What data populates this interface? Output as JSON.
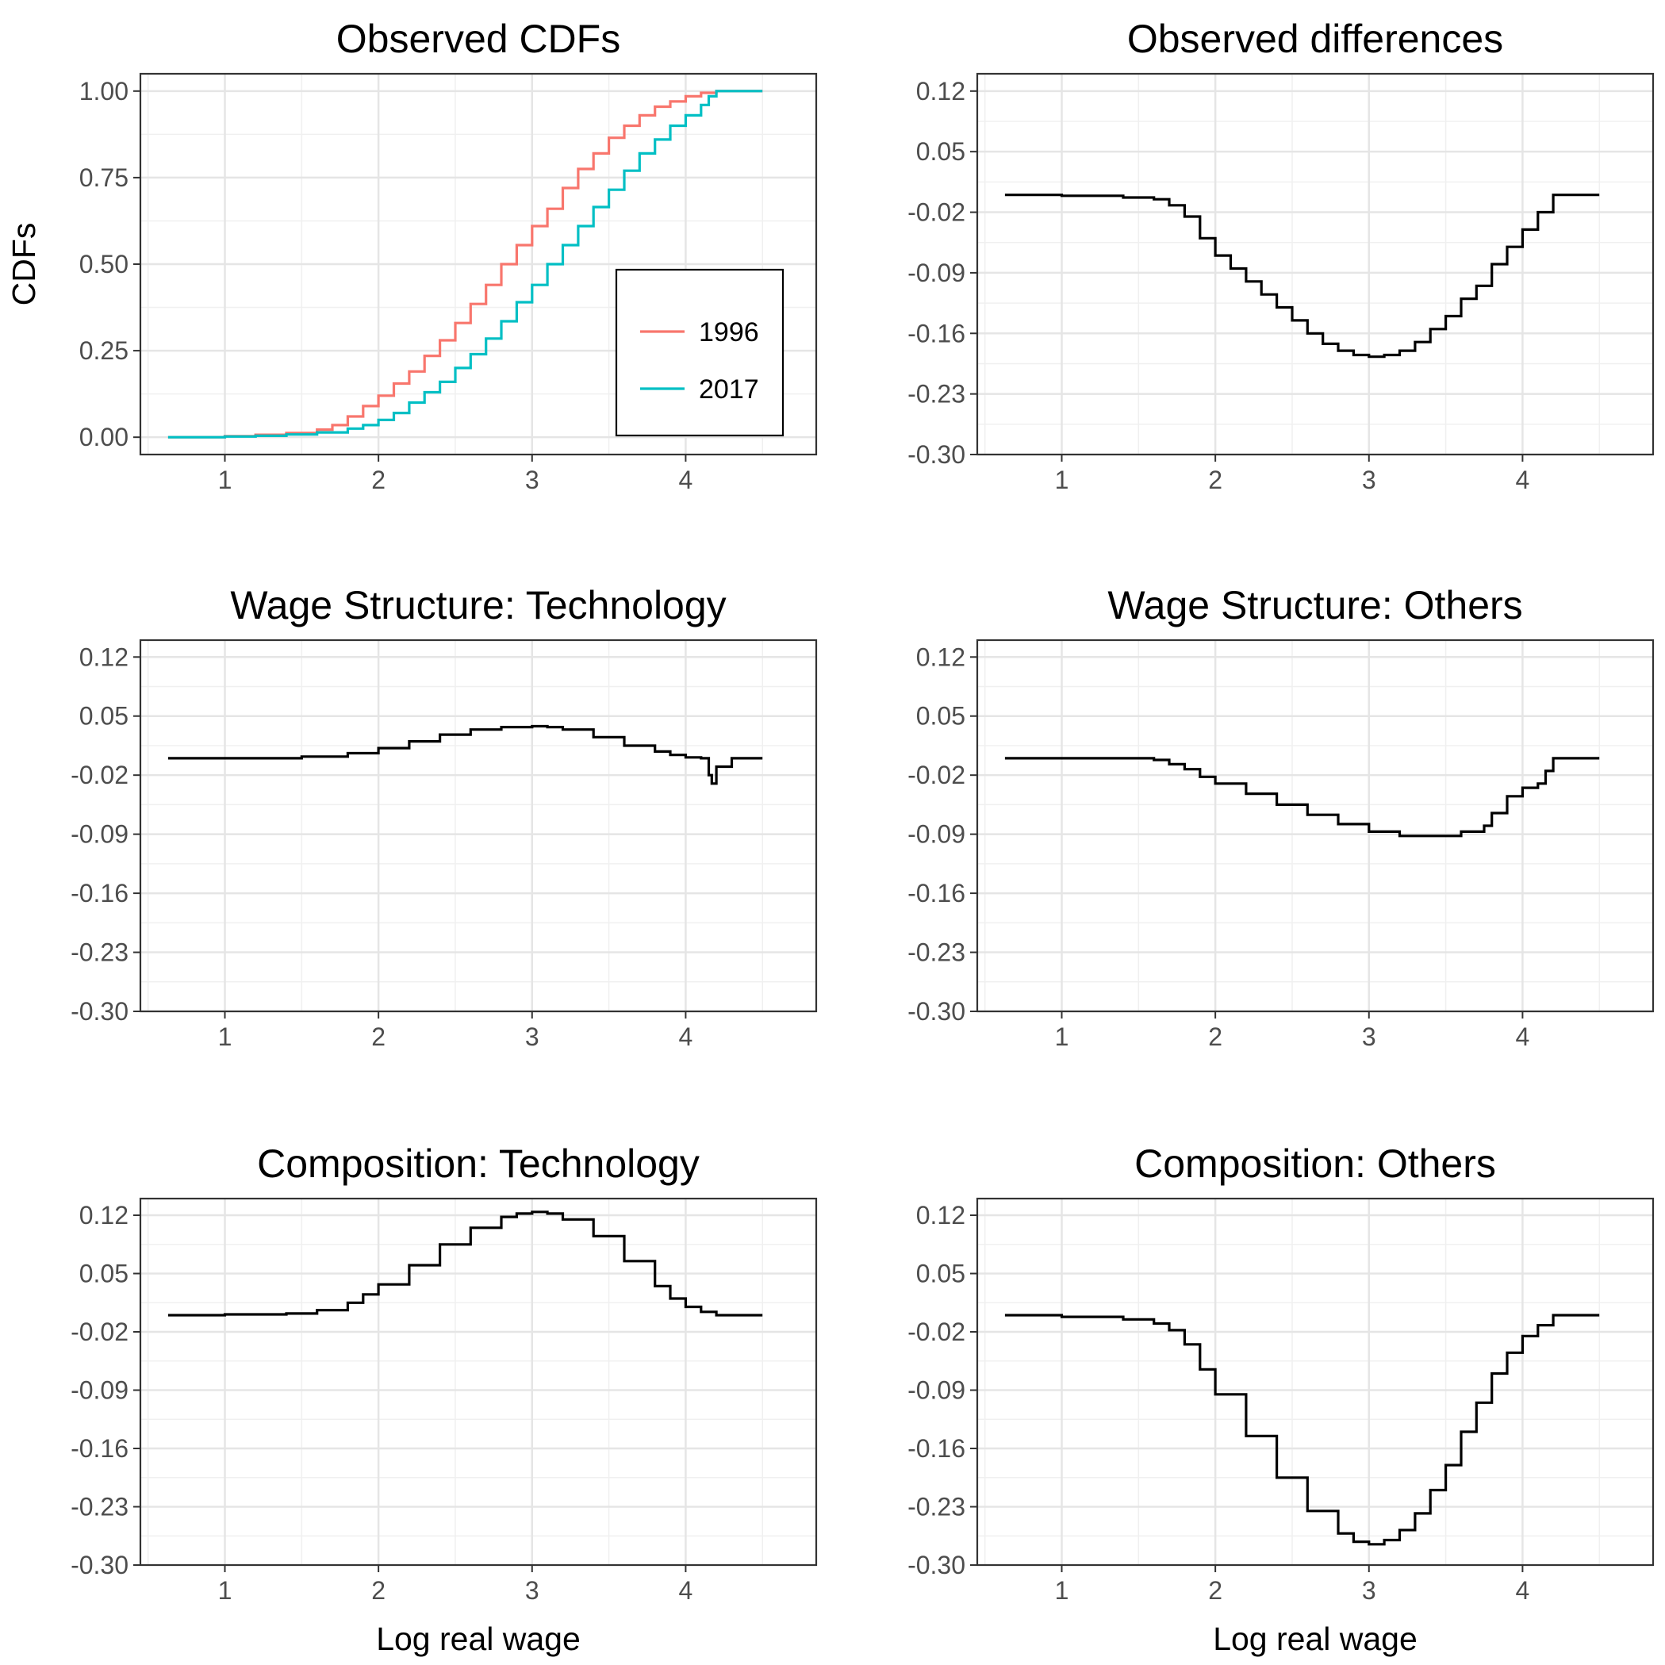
{
  "chart_data": [
    {
      "type": "line",
      "title": "Observed CDFs",
      "xlabel": "",
      "ylabel": "CDFs",
      "xlim": [
        0.45,
        4.85
      ],
      "ylim": [
        -0.05,
        1.05
      ],
      "xticks": [
        "1",
        "2",
        "3",
        "4"
      ],
      "yticks": [
        "0.00",
        "0.25",
        "0.50",
        "0.75",
        "1.00"
      ],
      "grid": true,
      "legend": {
        "position": "bottom-right",
        "entries": [
          "1996",
          "2017"
        ]
      },
      "series": [
        {
          "name": "1996",
          "color": "#F8766D",
          "x": [
            0.63,
            1.0,
            1.2,
            1.4,
            1.6,
            1.7,
            1.8,
            1.9,
            2.0,
            2.1,
            2.2,
            2.3,
            2.4,
            2.5,
            2.6,
            2.7,
            2.8,
            2.9,
            3.0,
            3.1,
            3.2,
            3.3,
            3.4,
            3.5,
            3.6,
            3.7,
            3.8,
            3.9,
            4.0,
            4.1,
            4.2,
            4.5
          ],
          "y": [
            0.0,
            0.003,
            0.007,
            0.012,
            0.022,
            0.035,
            0.06,
            0.09,
            0.12,
            0.155,
            0.19,
            0.235,
            0.28,
            0.33,
            0.385,
            0.44,
            0.5,
            0.555,
            0.61,
            0.66,
            0.72,
            0.775,
            0.82,
            0.865,
            0.9,
            0.93,
            0.955,
            0.97,
            0.985,
            0.995,
            1.0,
            1.0
          ]
        },
        {
          "name": "2017",
          "color": "#00BFC4",
          "x": [
            0.63,
            1.0,
            1.2,
            1.4,
            1.6,
            1.8,
            1.9,
            2.0,
            2.1,
            2.2,
            2.3,
            2.4,
            2.5,
            2.6,
            2.7,
            2.8,
            2.9,
            3.0,
            3.1,
            3.2,
            3.3,
            3.4,
            3.5,
            3.6,
            3.7,
            3.8,
            3.9,
            4.0,
            4.1,
            4.15,
            4.2,
            4.5
          ],
          "y": [
            0.0,
            0.002,
            0.004,
            0.008,
            0.014,
            0.025,
            0.035,
            0.05,
            0.07,
            0.1,
            0.13,
            0.16,
            0.2,
            0.24,
            0.285,
            0.335,
            0.39,
            0.44,
            0.5,
            0.555,
            0.61,
            0.665,
            0.715,
            0.77,
            0.82,
            0.86,
            0.9,
            0.93,
            0.96,
            0.985,
            1.0,
            1.0
          ]
        }
      ]
    },
    {
      "type": "line",
      "title": "Observed differences",
      "xlabel": "",
      "ylabel": "",
      "xlim": [
        0.45,
        4.85
      ],
      "ylim": [
        -0.3,
        0.14
      ],
      "xticks": [
        "1",
        "2",
        "3",
        "4"
      ],
      "yticks": [
        "0.12",
        "0.05",
        "-0.02",
        "-0.09",
        "-0.16",
        "-0.23",
        "-0.30"
      ],
      "grid": true,
      "series": [
        {
          "color": "#000000",
          "x": [
            0.63,
            1.0,
            1.4,
            1.6,
            1.7,
            1.8,
            1.9,
            2.0,
            2.1,
            2.2,
            2.3,
            2.4,
            2.5,
            2.6,
            2.7,
            2.8,
            2.9,
            3.0,
            3.1,
            3.2,
            3.3,
            3.4,
            3.5,
            3.6,
            3.7,
            3.8,
            3.9,
            4.0,
            4.1,
            4.2,
            4.5
          ],
          "y": [
            0.0,
            -0.001,
            -0.003,
            -0.005,
            -0.012,
            -0.025,
            -0.05,
            -0.07,
            -0.085,
            -0.1,
            -0.115,
            -0.13,
            -0.145,
            -0.16,
            -0.172,
            -0.18,
            -0.185,
            -0.187,
            -0.185,
            -0.18,
            -0.17,
            -0.155,
            -0.14,
            -0.12,
            -0.105,
            -0.08,
            -0.06,
            -0.04,
            -0.02,
            0.0,
            0.0
          ]
        }
      ]
    },
    {
      "type": "line",
      "title": "Wage Structure: Technology",
      "xlabel": "",
      "ylabel": "",
      "xlim": [
        0.45,
        4.85
      ],
      "ylim": [
        -0.3,
        0.14
      ],
      "xticks": [
        "1",
        "2",
        "3",
        "4"
      ],
      "yticks": [
        "0.12",
        "0.05",
        "-0.02",
        "-0.09",
        "-0.16",
        "-0.23",
        "-0.30"
      ],
      "grid": true,
      "series": [
        {
          "color": "#000000",
          "x": [
            0.63,
            1.0,
            1.5,
            1.8,
            2.0,
            2.2,
            2.4,
            2.6,
            2.8,
            3.0,
            3.1,
            3.2,
            3.4,
            3.6,
            3.8,
            3.9,
            4.0,
            4.1,
            4.15,
            4.17,
            4.2,
            4.3,
            4.5
          ],
          "y": [
            0.0,
            0.0,
            0.002,
            0.006,
            0.012,
            0.02,
            0.028,
            0.034,
            0.037,
            0.038,
            0.037,
            0.034,
            0.025,
            0.015,
            0.008,
            0.004,
            0.001,
            0.0,
            -0.02,
            -0.03,
            -0.01,
            0.0,
            0.0
          ]
        }
      ]
    },
    {
      "type": "line",
      "title": "Wage Structure: Others",
      "xlabel": "",
      "ylabel": "",
      "xlim": [
        0.45,
        4.85
      ],
      "ylim": [
        -0.3,
        0.14
      ],
      "xticks": [
        "1",
        "2",
        "3",
        "4"
      ],
      "yticks": [
        "0.12",
        "0.05",
        "-0.02",
        "-0.09",
        "-0.16",
        "-0.23",
        "-0.30"
      ],
      "grid": true,
      "series": [
        {
          "color": "#000000",
          "x": [
            0.63,
            1.0,
            1.5,
            1.6,
            1.7,
            1.8,
            1.9,
            2.0,
            2.2,
            2.4,
            2.6,
            2.8,
            3.0,
            3.2,
            3.4,
            3.6,
            3.75,
            3.8,
            3.9,
            4.0,
            4.1,
            4.15,
            4.2,
            4.5
          ],
          "y": [
            0.0,
            0.0,
            0.0,
            -0.002,
            -0.007,
            -0.013,
            -0.022,
            -0.03,
            -0.042,
            -0.055,
            -0.067,
            -0.078,
            -0.087,
            -0.092,
            -0.092,
            -0.087,
            -0.08,
            -0.065,
            -0.045,
            -0.035,
            -0.03,
            -0.015,
            0.0,
            0.0
          ]
        }
      ]
    },
    {
      "type": "line",
      "title": "Composition: Technology",
      "xlabel": "Log real wage",
      "ylabel": "",
      "xlim": [
        0.45,
        4.85
      ],
      "ylim": [
        -0.3,
        0.14
      ],
      "xticks": [
        "1",
        "2",
        "3",
        "4"
      ],
      "yticks": [
        "0.12",
        "0.05",
        "-0.02",
        "-0.09",
        "-0.16",
        "-0.23",
        "-0.30"
      ],
      "grid": true,
      "series": [
        {
          "color": "#000000",
          "x": [
            0.63,
            1.0,
            1.4,
            1.6,
            1.8,
            1.9,
            2.0,
            2.2,
            2.4,
            2.6,
            2.8,
            2.9,
            3.0,
            3.1,
            3.2,
            3.4,
            3.6,
            3.8,
            3.9,
            4.0,
            4.1,
            4.2,
            4.5
          ],
          "y": [
            0.0,
            0.001,
            0.002,
            0.006,
            0.015,
            0.025,
            0.037,
            0.06,
            0.085,
            0.105,
            0.118,
            0.122,
            0.124,
            0.122,
            0.115,
            0.095,
            0.065,
            0.035,
            0.02,
            0.01,
            0.004,
            0.0,
            0.0
          ]
        }
      ]
    },
    {
      "type": "line",
      "title": "Composition: Others",
      "xlabel": "Log real wage",
      "ylabel": "",
      "xlim": [
        0.45,
        4.85
      ],
      "ylim": [
        -0.3,
        0.14
      ],
      "xticks": [
        "1",
        "2",
        "3",
        "4"
      ],
      "yticks": [
        "0.12",
        "0.05",
        "-0.02",
        "-0.09",
        "-0.16",
        "-0.23",
        "-0.30"
      ],
      "grid": true,
      "series": [
        {
          "color": "#000000",
          "x": [
            0.63,
            1.0,
            1.4,
            1.6,
            1.7,
            1.8,
            1.9,
            2.0,
            2.2,
            2.4,
            2.6,
            2.8,
            2.9,
            3.0,
            3.1,
            3.2,
            3.3,
            3.4,
            3.5,
            3.6,
            3.7,
            3.8,
            3.9,
            4.0,
            4.1,
            4.2,
            4.5
          ],
          "y": [
            0.0,
            -0.002,
            -0.005,
            -0.01,
            -0.018,
            -0.035,
            -0.065,
            -0.095,
            -0.145,
            -0.195,
            -0.235,
            -0.262,
            -0.272,
            -0.275,
            -0.27,
            -0.258,
            -0.238,
            -0.21,
            -0.18,
            -0.14,
            -0.105,
            -0.07,
            -0.045,
            -0.025,
            -0.012,
            0.0,
            0.0
          ]
        }
      ]
    }
  ]
}
